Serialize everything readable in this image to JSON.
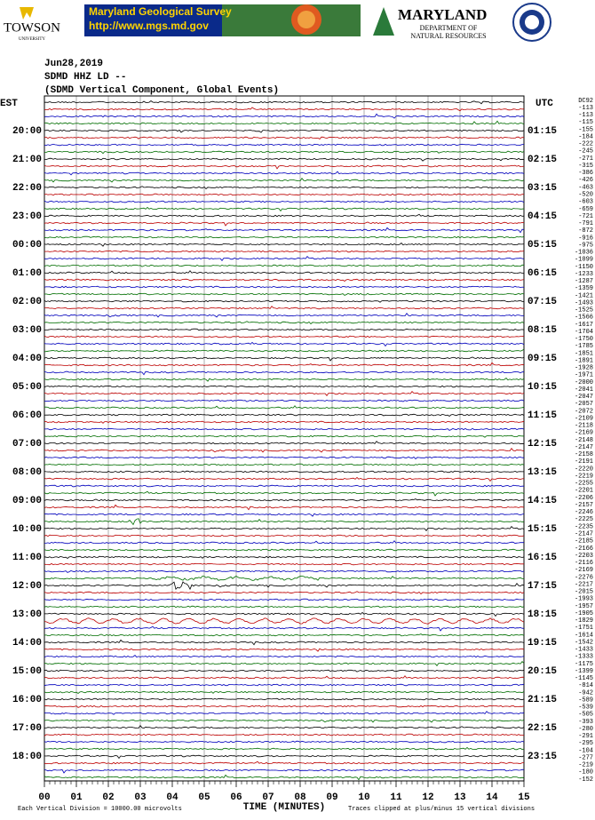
{
  "header": {
    "towson": "TOWSON",
    "towson_sub": "UNIVERSITY",
    "mgs_title": "Maryland Geological Survey",
    "mgs_url": "http://www.mgs.md.gov",
    "dnr_title": "MARYLAND",
    "dnr_sub1": "DEPARTMENT OF",
    "dnr_sub2": "NATURAL RESOURCES"
  },
  "plot": {
    "date": "Jun28,2019",
    "station": "SDMD HHZ LD --",
    "description": "(SDMD Vertical Component, Global Events)",
    "left_axis_label": "EST",
    "right_axis_label": "UTC",
    "right_header": "DC92",
    "left_times": [
      "20:00",
      "21:00",
      "22:00",
      "23:00",
      "00:00",
      "01:00",
      "02:00",
      "03:00",
      "04:00",
      "05:00",
      "06:00",
      "07:00",
      "08:00",
      "09:00",
      "10:00",
      "11:00",
      "12:00",
      "13:00",
      "14:00",
      "15:00",
      "16:00",
      "17:00",
      "18:00"
    ],
    "right_times": [
      "01:15",
      "02:15",
      "03:15",
      "04:15",
      "05:15",
      "06:15",
      "07:15",
      "08:15",
      "09:15",
      "10:15",
      "11:15",
      "12:15",
      "13:15",
      "14:15",
      "15:15",
      "16:15",
      "17:15",
      "18:15",
      "19:15",
      "20:15",
      "21:15",
      "22:15",
      "23:15"
    ],
    "offsets": [
      -113,
      -113,
      -115,
      -155,
      -184,
      -222,
      -245,
      -271,
      -315,
      -386,
      -426,
      -463,
      -520,
      -603,
      -659,
      -721,
      -791,
      -872,
      -916,
      -975,
      -1036,
      -1099,
      -1150,
      -1233,
      -1287,
      -1359,
      -1421,
      -1493,
      -1525,
      -1566,
      -1617,
      -1704,
      -1750,
      -1785,
      -1851,
      -1891,
      -1928,
      -1971,
      -2000,
      -2041,
      -2047,
      -2057,
      -2072,
      -2109,
      -2118,
      -2169,
      -2148,
      -2147,
      -2158,
      -2191,
      -2220,
      -2219,
      -2255,
      -2201,
      -2206,
      -2157,
      -2246,
      -2225,
      -2235,
      -2147,
      -2185,
      -2166,
      -2203,
      -2116,
      -2169,
      -2276,
      -2217,
      -2015,
      -1993,
      -1957,
      -1905,
      -1829,
      -1751,
      -1614,
      -1542,
      -1433,
      -1333,
      -1175,
      -1399,
      -1145,
      -814,
      -942,
      -589,
      -539,
      -505,
      -393,
      -280,
      -291,
      -295,
      -104,
      -277,
      -219,
      -180,
      -152
    ],
    "minute_labels": [
      "00",
      "01",
      "02",
      "03",
      "04",
      "05",
      "06",
      "07",
      "08",
      "09",
      "10",
      "11",
      "12",
      "13",
      "14",
      "15"
    ],
    "x_axis_title": "TIME (MINUTES)",
    "scale_note": "Each Vertical Division = 10000.00 microvolts",
    "clip_note": "Traces clipped at plus/minus 15 vertical divisions"
  }
}
